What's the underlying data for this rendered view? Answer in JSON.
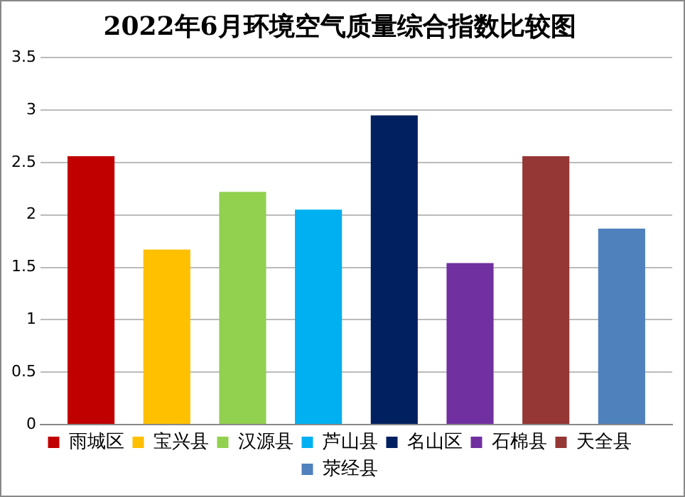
{
  "chart_data": {
    "type": "bar",
    "title": "2022年6月环境空气质量综合指数比较图",
    "categories": [
      null
    ],
    "series": [
      {
        "name": "雨城区",
        "color": "#c00000",
        "values": [
          2.56
        ]
      },
      {
        "name": "宝兴县",
        "color": "#ffc000",
        "values": [
          1.67
        ]
      },
      {
        "name": "汉源县",
        "color": "#92d050",
        "values": [
          2.22
        ]
      },
      {
        "name": "芦山县",
        "color": "#00b0f0",
        "values": [
          2.05
        ]
      },
      {
        "name": "名山区",
        "color": "#002060",
        "values": [
          2.95
        ]
      },
      {
        "name": "石棉县",
        "color": "#7030a0",
        "values": [
          1.54
        ]
      },
      {
        "name": "天全县",
        "color": "#953735",
        "values": [
          2.56
        ]
      },
      {
        "name": "荥经县",
        "color": "#4f81bd",
        "values": [
          1.87
        ]
      }
    ],
    "ylim": [
      0,
      3.5
    ],
    "yticks": [
      0,
      0.5,
      1,
      1.5,
      2,
      2.5,
      3,
      3.5
    ],
    "grid": "y",
    "legend": "bottom"
  }
}
